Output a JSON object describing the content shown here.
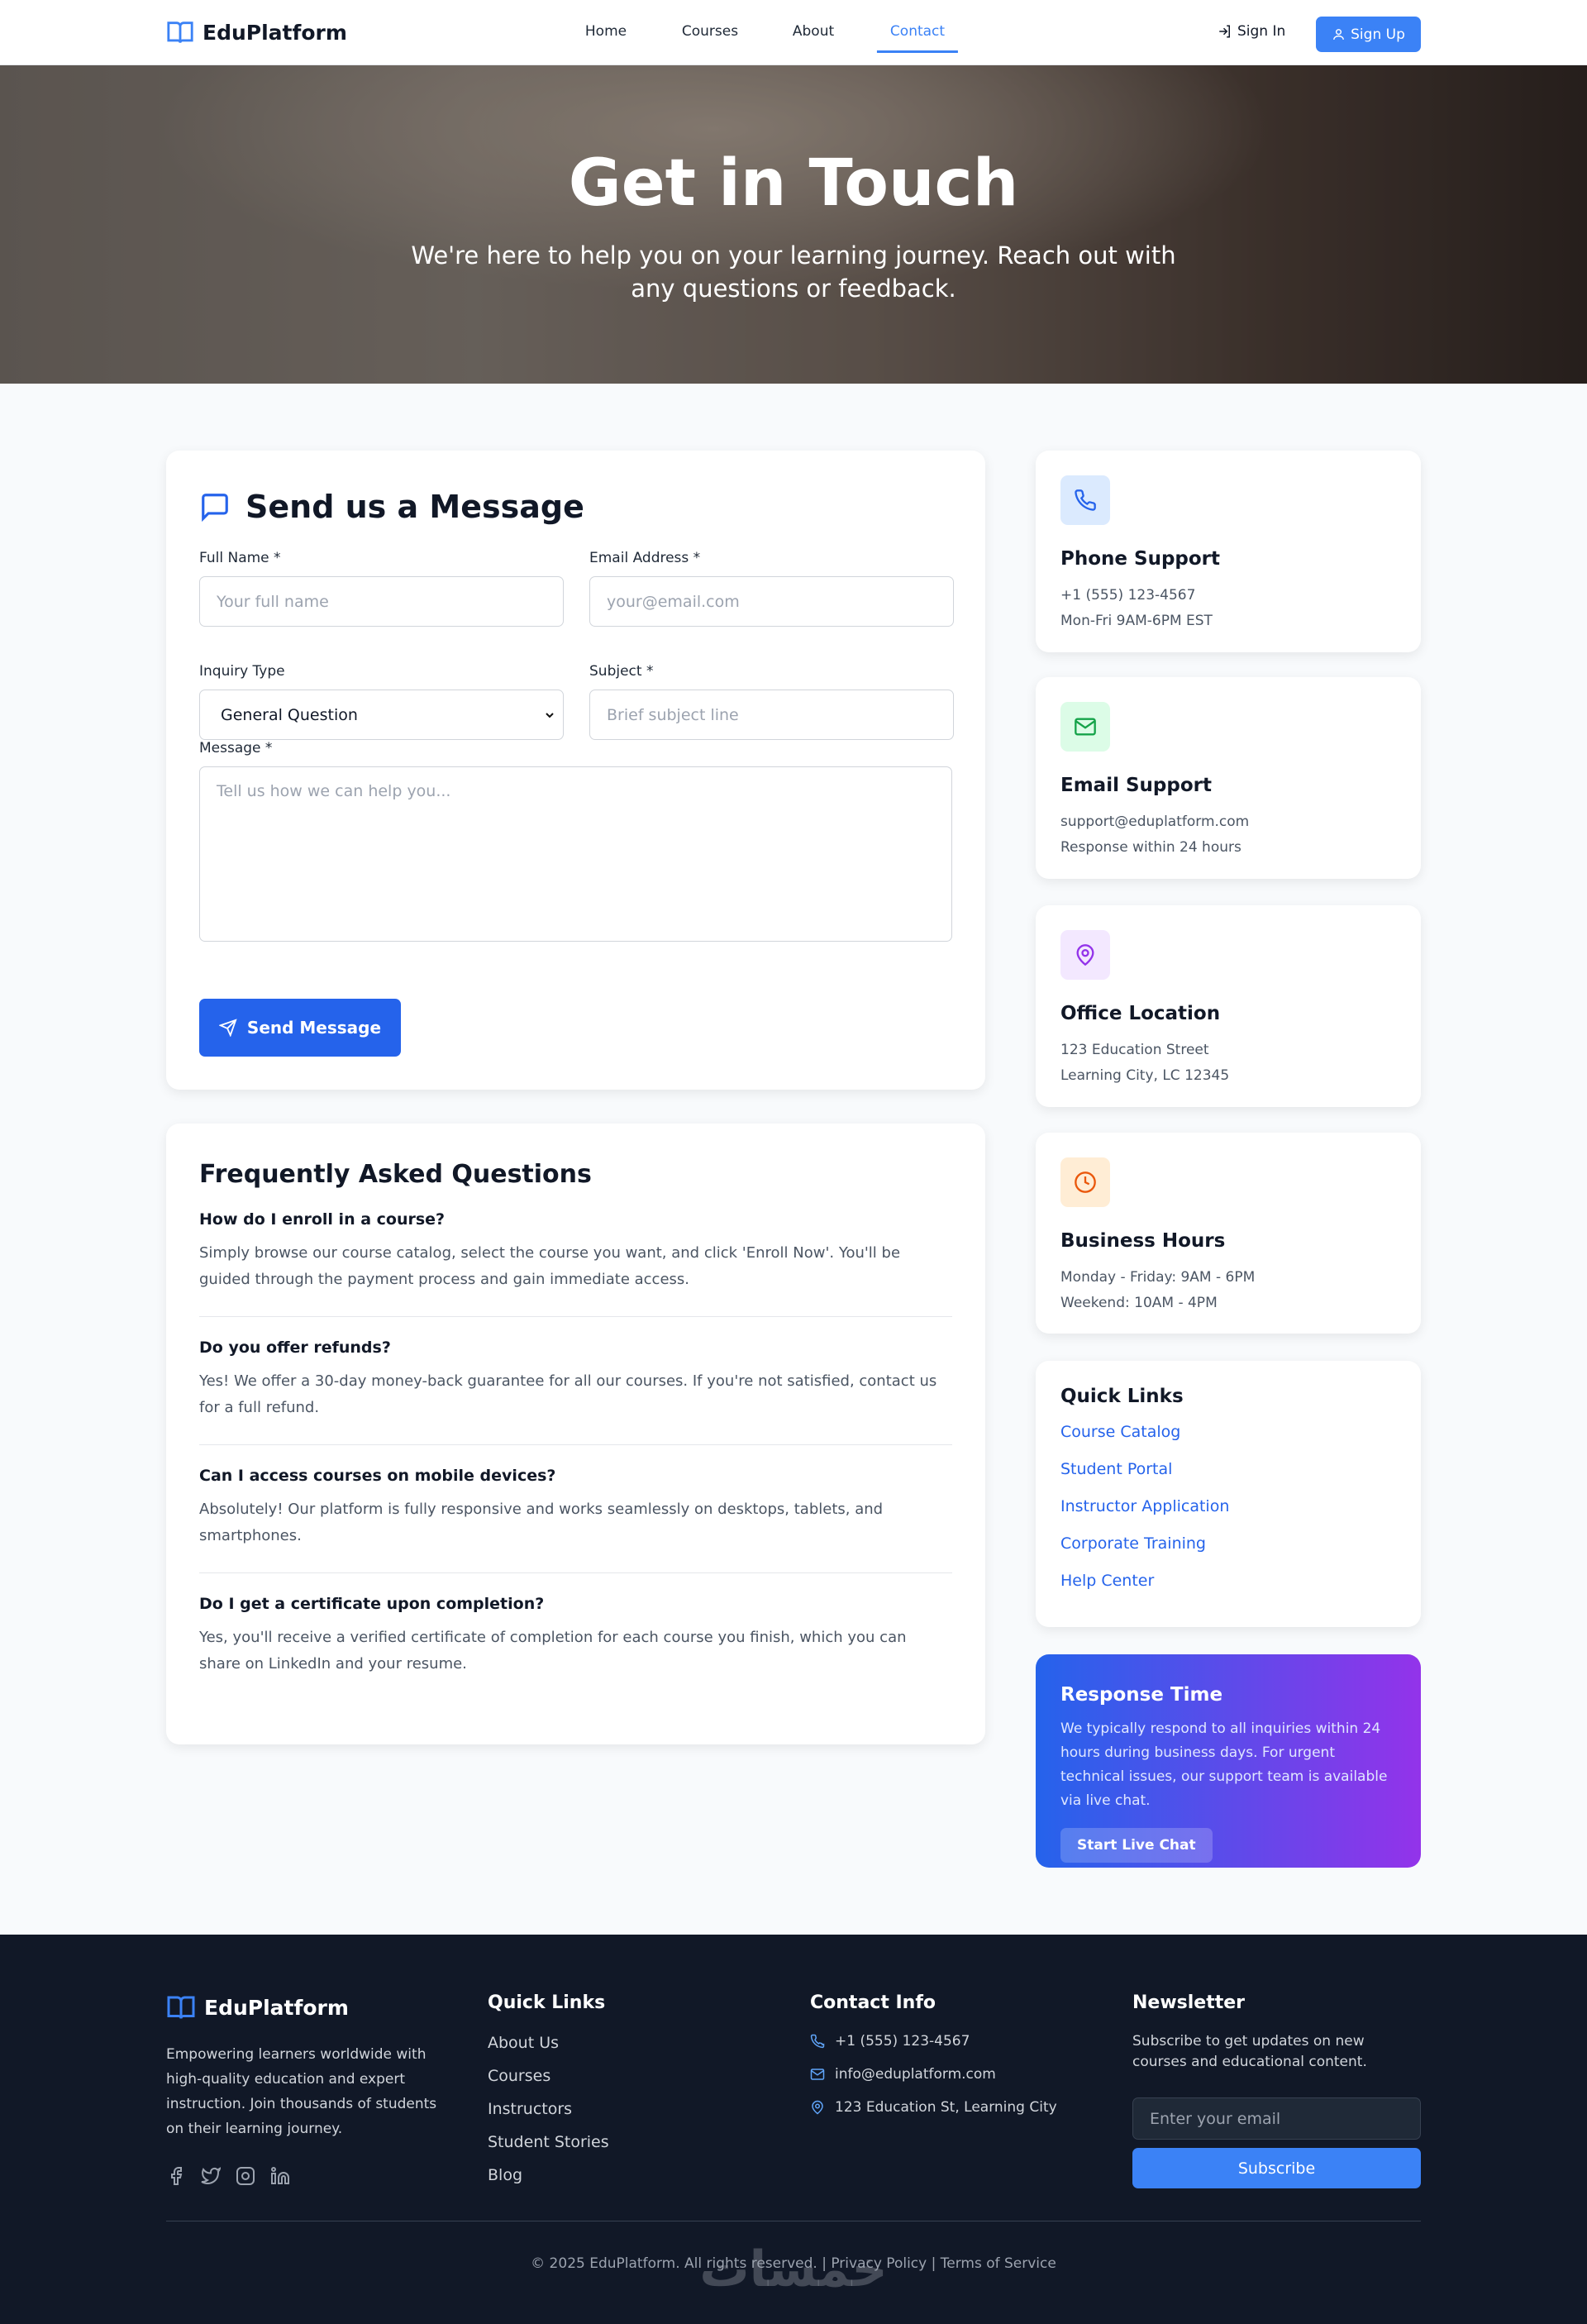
{
  "brand": {
    "name": "EduPlatform",
    "accent": "#3b82f6"
  },
  "nav": {
    "links": [
      "Home",
      "Courses",
      "About",
      "Contact"
    ],
    "active": "Contact",
    "sign_in": "Sign In",
    "sign_up": "Sign Up"
  },
  "hero": {
    "title": "Get in Touch",
    "subtitle": "We're here to help you on your learning journey. Reach out with any questions or feedback."
  },
  "form": {
    "title": "Send us a Message",
    "full_name": {
      "label": "Full Name *",
      "placeholder": "Your full name"
    },
    "email": {
      "label": "Email Address *",
      "placeholder": "your@email.com"
    },
    "inquiry": {
      "label": "Inquiry Type",
      "value": "General Question"
    },
    "subject": {
      "label": "Subject *",
      "placeholder": "Brief subject line"
    },
    "message": {
      "label": "Message *",
      "placeholder": "Tell us how we can help you..."
    },
    "submit": "Send Message"
  },
  "faq": {
    "title": "Frequently Asked Questions",
    "items": [
      {
        "q": "How do I enroll in a course?",
        "a": "Simply browse our course catalog, select the course you want, and click 'Enroll Now'. You'll be guided through the payment process and gain immediate access."
      },
      {
        "q": "Do you offer refunds?",
        "a": "Yes! We offer a 30-day money-back guarantee for all our courses. If you're not satisfied, contact us for a full refund."
      },
      {
        "q": "Can I access courses on mobile devices?",
        "a": "Absolutely! Our platform is fully responsive and works seamlessly on desktops, tablets, and smartphones."
      },
      {
        "q": "Do I get a certificate upon completion?",
        "a": "Yes, you'll receive a verified certificate of completion for each course you finish, which you can share on LinkedIn and your resume."
      }
    ]
  },
  "contact_cards": [
    {
      "title": "Phone Support",
      "lines": [
        "+1 (555) 123-4567",
        "Mon-Fri 9AM-6PM EST"
      ],
      "icon": "phone-icon",
      "color": "#2563eb",
      "bg": "#dbeafe"
    },
    {
      "title": "Email Support",
      "lines": [
        "support@eduplatform.com",
        "Response within 24 hours"
      ],
      "icon": "mail-icon",
      "color": "#16a34a",
      "bg": "#dcfce7"
    },
    {
      "title": "Office Location",
      "lines": [
        "123 Education Street",
        "Learning City, LC 12345"
      ],
      "icon": "map-pin-icon",
      "color": "#9333ea",
      "bg": "#f3e8ff"
    },
    {
      "title": "Business Hours",
      "lines": [
        "Monday - Friday: 9AM - 6PM",
        "Weekend: 10AM - 4PM"
      ],
      "icon": "clock-icon",
      "color": "#ea580c",
      "bg": "#ffedd5"
    }
  ],
  "quick_links": {
    "title": "Quick Links",
    "items": [
      "Course Catalog",
      "Student Portal",
      "Instructor Application",
      "Corporate Training",
      "Help Center"
    ]
  },
  "response": {
    "title": "Response Time",
    "text": "We typically respond to all inquiries within 24 hours during business days. For urgent technical issues, our support team is available via live chat.",
    "button": "Start Live Chat"
  },
  "footer": {
    "description": "Empowering learners worldwide with high-quality education and expert instruction. Join thousands of students on their learning journey.",
    "socials": [
      "facebook-icon",
      "twitter-icon",
      "instagram-icon",
      "linkedin-icon"
    ],
    "quick_links": {
      "title": "Quick Links",
      "items": [
        "About Us",
        "Courses",
        "Instructors",
        "Student Stories",
        "Blog"
      ]
    },
    "contact": {
      "title": "Contact Info",
      "phone": "+1 (555) 123-4567",
      "email": "info@eduplatform.com",
      "address": "123 Education St, Learning City"
    },
    "newsletter": {
      "title": "Newsletter",
      "text": "Subscribe to get updates on new courses and educational content.",
      "placeholder": "Enter your email",
      "button": "Subscribe"
    },
    "copyright": "© 2025 EduPlatform. All rights reserved. | Privacy Policy | Terms of Service",
    "watermark": "خمسات"
  }
}
